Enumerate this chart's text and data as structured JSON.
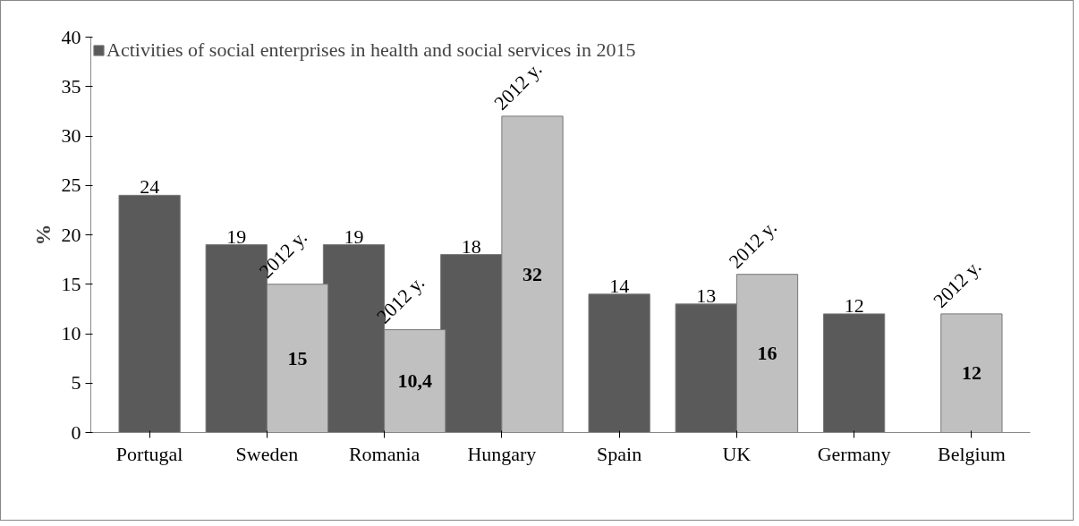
{
  "chart_data": {
    "type": "bar",
    "ylabel": "%",
    "categories": [
      "Portugal",
      "Sweden",
      "Romania",
      "Hungary",
      "Spain",
      "UK",
      "Germany",
      "Belgium"
    ],
    "series": [
      {
        "name": "Activities of social enterprises in health and social services in 2015",
        "color": "#5a5a5a",
        "values": [
          24,
          19,
          19,
          18,
          14,
          13,
          12,
          null
        ],
        "value_labels": [
          "24",
          "19",
          "19",
          "18",
          "14",
          "13",
          "12",
          null
        ]
      },
      {
        "name": "2012 y.",
        "color": "#c0c0c0",
        "values": [
          null,
          15,
          10.4,
          32,
          null,
          16,
          null,
          12
        ],
        "value_labels": [
          null,
          "15",
          "10,4",
          "32",
          null,
          "16",
          null,
          "12"
        ]
      }
    ],
    "ylim": [
      0,
      40
    ],
    "yticks": [
      0,
      5,
      10,
      15,
      20,
      25,
      30,
      35,
      40
    ],
    "legend": "top left",
    "grid": false
  }
}
